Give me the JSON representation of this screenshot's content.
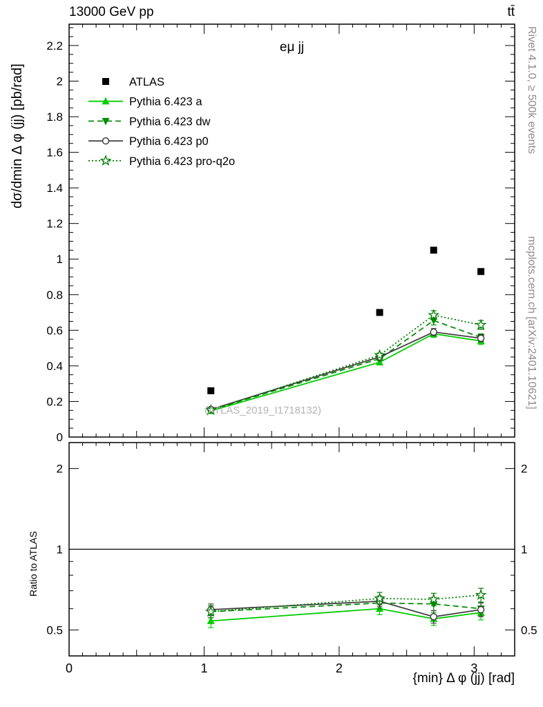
{
  "header": {
    "left": "13000 GeV pp",
    "right": "tt̄"
  },
  "title": "eμ jj",
  "watermark": "(ATLAS_2019_I1718132)",
  "side_notes": {
    "top": "Rivet 4.1.0, ≥ 500k events",
    "bottom": "mcplots.cern.ch [arXiv:2401.10621]"
  },
  "axes": {
    "main_y_label": "dσ/dmin Δ φ (jj) [pb/rad]",
    "ratio_y_label": "Ratio to ATLAS",
    "x_label": "{min} Δ φ (jj) [rad]",
    "x_tick_labels": [
      "0",
      "1",
      "2",
      "3"
    ],
    "main_y_tick_labels": [
      "0",
      "0.2",
      "0.4",
      "0.6",
      "0.8",
      "1",
      "1.2",
      "1.4",
      "1.6",
      "1.8",
      "2",
      "2.2"
    ],
    "ratio_y_tick_labels": [
      "0.5",
      "1",
      "2"
    ]
  },
  "colors": {
    "frame": "#000000",
    "bright_green": "#00cc00",
    "dark_green": "#008f00",
    "darker_green": "#007d00",
    "gray_line": "#404040",
    "note_gray": "#8c8c8c",
    "watermark_gray": "#b4b4b4"
  },
  "chart_data": [
    {
      "name": "differential-cross-section",
      "type": "line",
      "title": "eμ jj",
      "xlabel": "{min} Δ φ (jj) [rad]",
      "ylabel": "dσ/dmin Δ φ (jj) [pb/rad]",
      "xlim": [
        0,
        3.3
      ],
      "ylim": [
        0,
        2.32
      ],
      "grid": false,
      "legend_position": "upper-left",
      "x": [
        1.05,
        2.3,
        2.7,
        3.05
      ],
      "series": [
        {
          "name": "ATLAS",
          "marker": "square",
          "line": "none",
          "color": "#000000",
          "values": [
            0.26,
            0.7,
            1.05,
            0.93
          ],
          "errors": [
            0.01,
            0.01,
            0.015,
            0.015
          ]
        },
        {
          "name": "Pythia 6.423 a",
          "marker": "triangle-up",
          "line": "solid",
          "color": "#00cc00",
          "values": [
            0.147,
            0.42,
            0.58,
            0.54
          ],
          "errors": [
            0.008,
            0.012,
            0.02,
            0.02
          ]
        },
        {
          "name": "Pythia 6.423 dw",
          "marker": "triangle-down",
          "line": "dashed",
          "color": "#008f00",
          "values": [
            0.152,
            0.44,
            0.655,
            0.56
          ],
          "errors": [
            0.008,
            0.012,
            0.025,
            0.02
          ]
        },
        {
          "name": "Pythia 6.423 p0",
          "marker": "circle-open",
          "line": "solid",
          "color": "#404040",
          "values": [
            0.155,
            0.45,
            0.59,
            0.555
          ],
          "errors": [
            0.008,
            0.012,
            0.02,
            0.02
          ]
        },
        {
          "name": "Pythia 6.423 pro-q2o",
          "marker": "star-open",
          "line": "dotted",
          "color": "#007d00",
          "values": [
            0.152,
            0.46,
            0.685,
            0.63
          ],
          "errors": [
            0.008,
            0.012,
            0.025,
            0.025
          ]
        }
      ]
    },
    {
      "name": "ratio",
      "type": "line",
      "ylabel": "Ratio to ATLAS",
      "yscale": "log",
      "xlim": [
        0,
        3.3
      ],
      "ylim": [
        0.4,
        2.5
      ],
      "reference_line": 1,
      "x": [
        1.05,
        2.3,
        2.7,
        3.05
      ],
      "series": [
        {
          "name": "Pythia 6.423 a",
          "values": [
            0.54,
            0.6,
            0.55,
            0.58
          ],
          "errors": [
            0.03,
            0.03,
            0.03,
            0.035
          ]
        },
        {
          "name": "Pythia 6.423 dw",
          "values": [
            0.585,
            0.63,
            0.625,
            0.6
          ],
          "errors": [
            0.03,
            0.03,
            0.035,
            0.035
          ]
        },
        {
          "name": "Pythia 6.423 p0",
          "values": [
            0.595,
            0.64,
            0.56,
            0.595
          ],
          "errors": [
            0.03,
            0.03,
            0.03,
            0.035
          ]
        },
        {
          "name": "Pythia 6.423 pro-q2o",
          "values": [
            0.585,
            0.655,
            0.65,
            0.675
          ],
          "errors": [
            0.03,
            0.035,
            0.035,
            0.04
          ]
        }
      ]
    }
  ]
}
